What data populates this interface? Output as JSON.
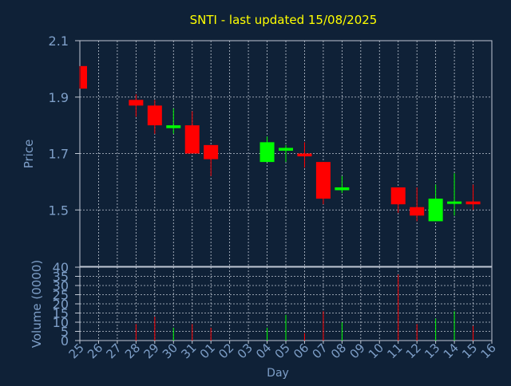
{
  "chart_data": [
    {
      "type": "candlestick",
      "title": "SNTI - last updated 15/08/2025",
      "ylabel": "Price",
      "ylim": [
        1.3,
        2.1
      ],
      "yticks": [
        "1.5",
        "1.7",
        "1.9",
        "2.1"
      ],
      "ytick_values": [
        1.5,
        1.7,
        1.9,
        2.1
      ],
      "categories": [
        "25",
        "26",
        "27",
        "28",
        "29",
        "30",
        "31",
        "01",
        "02",
        "03",
        "04",
        "05",
        "06",
        "07",
        "08",
        "09",
        "10",
        "11",
        "12",
        "13",
        "14",
        "15",
        "16"
      ],
      "grid": true,
      "series": [
        {
          "x": "25",
          "open": 2.01,
          "high": 2.01,
          "low": 1.93,
          "close": 1.93
        },
        {
          "x": "28",
          "open": 1.89,
          "high": 1.91,
          "low": 1.83,
          "close": 1.87
        },
        {
          "x": "29",
          "open": 1.87,
          "high": 1.89,
          "low": 1.77,
          "close": 1.8
        },
        {
          "x": "30",
          "open": 1.79,
          "high": 1.86,
          "low": 1.77,
          "close": 1.8
        },
        {
          "x": "31",
          "open": 1.8,
          "high": 1.85,
          "low": 1.7,
          "close": 1.7
        },
        {
          "x": "01",
          "open": 1.73,
          "high": 1.73,
          "low": 1.62,
          "close": 1.68
        },
        {
          "x": "04",
          "open": 1.67,
          "high": 1.76,
          "low": 1.67,
          "close": 1.74
        },
        {
          "x": "05",
          "open": 1.71,
          "high": 1.73,
          "low": 1.67,
          "close": 1.72
        },
        {
          "x": "06",
          "open": 1.7,
          "high": 1.74,
          "low": 1.65,
          "close": 1.69
        },
        {
          "x": "07",
          "open": 1.67,
          "high": 1.67,
          "low": 1.52,
          "close": 1.54
        },
        {
          "x": "08",
          "open": 1.57,
          "high": 1.62,
          "low": 1.56,
          "close": 1.58
        },
        {
          "x": "11",
          "open": 1.58,
          "high": 1.58,
          "low": 1.49,
          "close": 1.52
        },
        {
          "x": "12",
          "open": 1.51,
          "high": 1.58,
          "low": 1.46,
          "close": 1.48
        },
        {
          "x": "13",
          "open": 1.46,
          "high": 1.59,
          "low": 1.46,
          "close": 1.54
        },
        {
          "x": "14",
          "open": 1.53,
          "high": 1.63,
          "low": 1.48,
          "close": 1.53
        },
        {
          "x": "15",
          "open": 1.53,
          "high": 1.59,
          "low": 1.5,
          "close": 1.52
        }
      ]
    },
    {
      "type": "bar",
      "ylabel": "Volume (0000)",
      "xlabel": "Day",
      "ylim": [
        0,
        40
      ],
      "yticks": [
        "0",
        "5",
        "10",
        "15",
        "20",
        "25",
        "30",
        "35",
        "40"
      ],
      "ytick_values": [
        0,
        5,
        10,
        15,
        20,
        25,
        30,
        35,
        40
      ],
      "categories": [
        "25",
        "26",
        "27",
        "28",
        "29",
        "30",
        "31",
        "01",
        "02",
        "03",
        "04",
        "05",
        "06",
        "07",
        "08",
        "09",
        "10",
        "11",
        "12",
        "13",
        "14",
        "15",
        "16"
      ],
      "grid": true,
      "values": [
        {
          "x": "28",
          "value": 9,
          "direction": "down"
        },
        {
          "x": "29",
          "value": 13,
          "direction": "down"
        },
        {
          "x": "30",
          "value": 7,
          "direction": "up"
        },
        {
          "x": "31",
          "value": 9,
          "direction": "down"
        },
        {
          "x": "01",
          "value": 7,
          "direction": "down"
        },
        {
          "x": "04",
          "value": 7,
          "direction": "up"
        },
        {
          "x": "05",
          "value": 14,
          "direction": "up"
        },
        {
          "x": "06",
          "value": 4,
          "direction": "down"
        },
        {
          "x": "07",
          "value": 16,
          "direction": "down"
        },
        {
          "x": "08",
          "value": 10,
          "direction": "up"
        },
        {
          "x": "11",
          "value": 36,
          "direction": "down"
        },
        {
          "x": "12",
          "value": 9,
          "direction": "down"
        },
        {
          "x": "13",
          "value": 12,
          "direction": "up"
        },
        {
          "x": "14",
          "value": 16,
          "direction": "up"
        },
        {
          "x": "15",
          "value": 8,
          "direction": "down"
        }
      ]
    }
  ],
  "colors": {
    "background": "#0f2137",
    "plot_background": "#0f2137",
    "title": "#ffff00",
    "axis_text": "#7e9fc8",
    "grid": "#c0c8d4",
    "up": "#00ff00",
    "down": "#ff0000"
  }
}
